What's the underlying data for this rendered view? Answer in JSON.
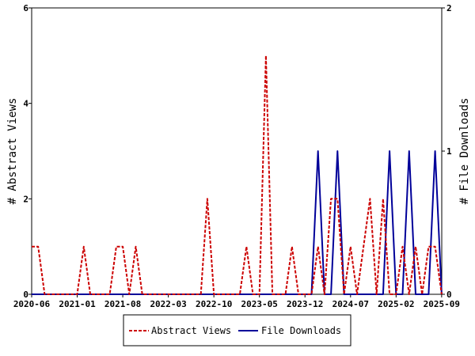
{
  "chart_data": {
    "type": "line",
    "title": "",
    "xlabel": "",
    "ylabel_left": "# Abstract Views",
    "ylabel_right": "# File Downloads",
    "ylim_left": [
      0,
      6
    ],
    "ylim_right": [
      0,
      2
    ],
    "yticks_left": [
      "0",
      "2",
      "4",
      "6"
    ],
    "yticks_right": [
      "0",
      "1",
      "2"
    ],
    "x_tick_labels": [
      "2020-06",
      "2021-01",
      "2021-08",
      "2022-03",
      "2022-10",
      "2023-05",
      "2023-12",
      "2024-07",
      "2025-02",
      "2025-09"
    ],
    "x_start": "2020-06",
    "legend_position": "bottom",
    "grid": false,
    "series": [
      {
        "name": "Abstract Views",
        "axis": "left",
        "color": "#cc0000",
        "style": "dashed",
        "points": [
          [
            "2020-06",
            1
          ],
          [
            "2020-07",
            1
          ],
          [
            "2020-08",
            0
          ],
          [
            "2020-09",
            0
          ],
          [
            "2020-10",
            0
          ],
          [
            "2020-11",
            0
          ],
          [
            "2020-12",
            0
          ],
          [
            "2021-01",
            0
          ],
          [
            "2021-02",
            1
          ],
          [
            "2021-03",
            0
          ],
          [
            "2021-04",
            0
          ],
          [
            "2021-05",
            0
          ],
          [
            "2021-06",
            0
          ],
          [
            "2021-07",
            1
          ],
          [
            "2021-08",
            1
          ],
          [
            "2021-09",
            0
          ],
          [
            "2021-10",
            1
          ],
          [
            "2021-11",
            0
          ],
          [
            "2021-12",
            0
          ],
          [
            "2022-01",
            0
          ],
          [
            "2022-02",
            0
          ],
          [
            "2022-03",
            0
          ],
          [
            "2022-04",
            0
          ],
          [
            "2022-05",
            0
          ],
          [
            "2022-06",
            0
          ],
          [
            "2022-07",
            0
          ],
          [
            "2022-08",
            0
          ],
          [
            "2022-09",
            2
          ],
          [
            "2022-10",
            0
          ],
          [
            "2022-11",
            0
          ],
          [
            "2022-12",
            0
          ],
          [
            "2023-01",
            0
          ],
          [
            "2023-02",
            0
          ],
          [
            "2023-03",
            1
          ],
          [
            "2023-04",
            0
          ],
          [
            "2023-05",
            0
          ],
          [
            "2023-06",
            5
          ],
          [
            "2023-07",
            0
          ],
          [
            "2023-08",
            0
          ],
          [
            "2023-09",
            0
          ],
          [
            "2023-10",
            1
          ],
          [
            "2023-11",
            0
          ],
          [
            "2023-12",
            0
          ],
          [
            "2024-01",
            0
          ],
          [
            "2024-02",
            1
          ],
          [
            "2024-03",
            0
          ],
          [
            "2024-04",
            2
          ],
          [
            "2024-05",
            2
          ],
          [
            "2024-06",
            0
          ],
          [
            "2024-07",
            1
          ],
          [
            "2024-08",
            0
          ],
          [
            "2024-09",
            1
          ],
          [
            "2024-10",
            2
          ],
          [
            "2024-11",
            0
          ],
          [
            "2024-12",
            2
          ],
          [
            "2025-01",
            0
          ],
          [
            "2025-02",
            0
          ],
          [
            "2025-03",
            1
          ],
          [
            "2025-04",
            0
          ],
          [
            "2025-05",
            1
          ],
          [
            "2025-06",
            0
          ],
          [
            "2025-07",
            1
          ],
          [
            "2025-08",
            1
          ],
          [
            "2025-09",
            0
          ]
        ]
      },
      {
        "name": "File Downloads",
        "axis": "right",
        "color": "#000099",
        "style": "solid",
        "points": [
          [
            "2020-06",
            0
          ],
          [
            "2023-12",
            0
          ],
          [
            "2024-01",
            0
          ],
          [
            "2024-02",
            1
          ],
          [
            "2024-03",
            0
          ],
          [
            "2024-04",
            0
          ],
          [
            "2024-05",
            1
          ],
          [
            "2024-06",
            0
          ],
          [
            "2024-07",
            0
          ],
          [
            "2024-08",
            0
          ],
          [
            "2024-09",
            0
          ],
          [
            "2024-10",
            0
          ],
          [
            "2024-11",
            0
          ],
          [
            "2024-12",
            0
          ],
          [
            "2025-01",
            1
          ],
          [
            "2025-02",
            0
          ],
          [
            "2025-03",
            0
          ],
          [
            "2025-04",
            1
          ],
          [
            "2025-05",
            0
          ],
          [
            "2025-06",
            0
          ],
          [
            "2025-07",
            0
          ],
          [
            "2025-08",
            1
          ],
          [
            "2025-09",
            0
          ]
        ]
      }
    ]
  }
}
